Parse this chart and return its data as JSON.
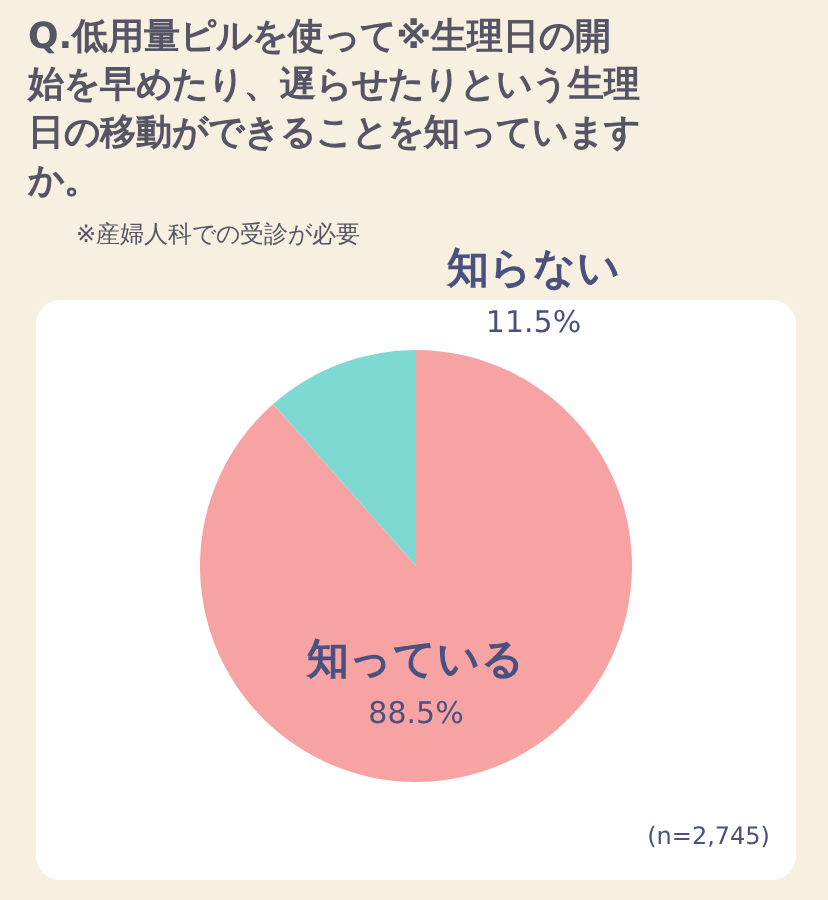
{
  "chart_data": {
    "type": "pie",
    "title": "Q.低用量ピルを使って※生理日の開始を早めたり、遅らせたりという生理日の移動ができることを知っていますか。",
    "subtitle": "※産婦人科での受診が必要",
    "categories": [
      "知っている",
      "知らない"
    ],
    "values": [
      88.5,
      11.5
    ],
    "colors": [
      "#f7a3a3",
      "#7fd9d3"
    ],
    "value_labels": [
      "88.5%",
      "11.5%"
    ],
    "annotations": [
      "(n=2,745)"
    ]
  }
}
